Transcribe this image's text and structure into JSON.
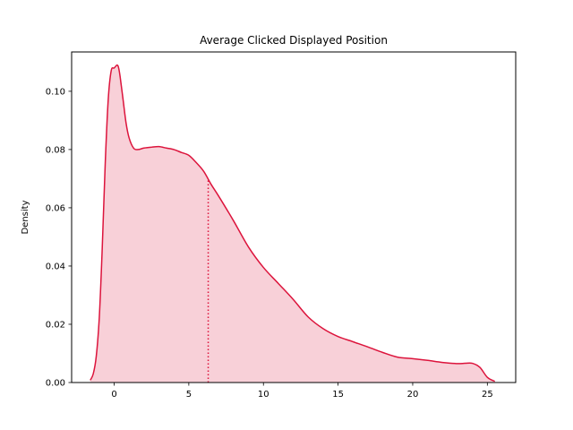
{
  "chart_data": {
    "type": "area",
    "title": "Average Clicked Displayed Position",
    "xlabel": "",
    "ylabel": "Density",
    "xlim": [
      -2.85,
      26.9
    ],
    "ylim": [
      0.0,
      0.1135
    ],
    "x_ticks": [
      0,
      5,
      10,
      15,
      20,
      25
    ],
    "y_ticks": [
      0.0,
      0.02,
      0.04,
      0.06,
      0.08,
      0.1
    ],
    "y_tick_labels": [
      "0.00",
      "0.02",
      "0.04",
      "0.06",
      "0.08",
      "0.10"
    ],
    "grid": false,
    "legend": "none",
    "series": [
      {
        "x": [
          -1.6,
          -1.4,
          -1.2,
          -1.0,
          -0.8,
          -0.6,
          -0.4,
          -0.2,
          0.0,
          0.2,
          0.3,
          0.4,
          0.6,
          0.8,
          1.0,
          1.3,
          1.6,
          2.0,
          2.5,
          3.0,
          3.5,
          4.0,
          4.5,
          5.0,
          5.5,
          6.0,
          6.5,
          7.0,
          8.0,
          9.0,
          10.0,
          11.0,
          12.0,
          13.0,
          14.0,
          15.0,
          16.0,
          17.0,
          18.0,
          19.0,
          20.0,
          21.0,
          22.0,
          23.0,
          23.5,
          24.0,
          24.5,
          25.0,
          25.5
        ],
        "y": [
          0.0008,
          0.003,
          0.009,
          0.022,
          0.046,
          0.075,
          0.097,
          0.107,
          0.108,
          0.109,
          0.108,
          0.105,
          0.097,
          0.089,
          0.084,
          0.0805,
          0.08,
          0.0805,
          0.0808,
          0.081,
          0.0805,
          0.08,
          0.079,
          0.078,
          0.0755,
          0.0725,
          0.068,
          0.064,
          0.0555,
          0.0465,
          0.0395,
          0.034,
          0.0285,
          0.0225,
          0.0185,
          0.0158,
          0.014,
          0.0122,
          0.0103,
          0.0087,
          0.0082,
          0.0076,
          0.0069,
          0.0065,
          0.0066,
          0.0066,
          0.0052,
          0.0018,
          0.0004
        ],
        "fill_alpha": 0.2
      }
    ],
    "annotations": [
      {
        "type": "vertical_dotted_line",
        "x": 6.3,
        "y_top": 0.0701
      }
    ],
    "colors": {
      "line": "#dc143c",
      "fill": "#dc143c"
    }
  }
}
